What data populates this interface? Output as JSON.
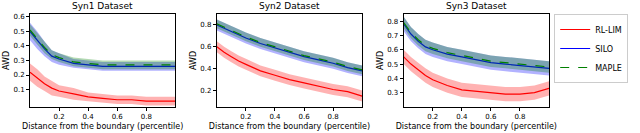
{
  "chart_data": [
    {
      "type": "line",
      "title": "Syn1 Dataset",
      "x_label": "Distance from the boundary (percentile)",
      "y_label": "AWD",
      "x": [
        0.0,
        0.05,
        0.1,
        0.15,
        0.2,
        0.3,
        0.4,
        0.5,
        0.6,
        0.7,
        0.8,
        0.9,
        1.0
      ],
      "xlim": [
        0,
        1
      ],
      "xticks": [
        0.2,
        0.4,
        0.6,
        0.8
      ],
      "ylim": [
        -0.02,
        0.62
      ],
      "yticks": [
        0.1,
        0.2,
        0.3,
        0.4,
        0.5,
        0.6
      ],
      "grid": false,
      "legend": "upper right",
      "series": [
        {
          "name": "RL-LIM",
          "color": "#ff0000",
          "line_style": "solid",
          "values": [
            0.22,
            0.18,
            0.14,
            0.11,
            0.09,
            0.07,
            0.05,
            0.04,
            0.03,
            0.03,
            0.02,
            0.02,
            0.02
          ],
          "error": [
            0.06,
            0.06,
            0.05,
            0.05,
            0.04,
            0.04,
            0.03,
            0.03,
            0.03,
            0.03,
            0.03,
            0.03,
            0.03
          ]
        },
        {
          "name": "SILO",
          "color": "#0000ff",
          "line_style": "solid",
          "values": [
            0.5,
            0.44,
            0.38,
            0.33,
            0.31,
            0.28,
            0.27,
            0.26,
            0.26,
            0.26,
            0.26,
            0.26,
            0.26
          ],
          "error": [
            0.06,
            0.06,
            0.05,
            0.04,
            0.04,
            0.03,
            0.03,
            0.03,
            0.03,
            0.03,
            0.03,
            0.03,
            0.03
          ]
        },
        {
          "name": "MAPLE",
          "color": "#008000",
          "line_style": "dashed",
          "values": [
            0.51,
            0.45,
            0.39,
            0.34,
            0.32,
            0.29,
            0.28,
            0.27,
            0.27,
            0.27,
            0.27,
            0.27,
            0.27
          ],
          "error": [
            0.04,
            0.04,
            0.04,
            0.03,
            0.03,
            0.03,
            0.03,
            0.03,
            0.03,
            0.03,
            0.03,
            0.03,
            0.03
          ]
        }
      ]
    },
    {
      "type": "line",
      "title": "Syn2 Dataset",
      "x_label": "Distance from the boundary (percentile)",
      "y_label": "AWD",
      "x": [
        0.0,
        0.05,
        0.1,
        0.15,
        0.2,
        0.3,
        0.4,
        0.5,
        0.6,
        0.7,
        0.8,
        0.9,
        1.0
      ],
      "xlim": [
        0,
        1
      ],
      "xticks": [
        0.2,
        0.4,
        0.6,
        0.8
      ],
      "ylim": [
        0.05,
        0.9
      ],
      "yticks": [
        0.2,
        0.4,
        0.6,
        0.8
      ],
      "grid": false,
      "legend": "upper right",
      "series": [
        {
          "name": "RL-LIM",
          "color": "#ff0000",
          "line_style": "solid",
          "values": [
            0.6,
            0.55,
            0.51,
            0.47,
            0.44,
            0.38,
            0.34,
            0.3,
            0.27,
            0.24,
            0.21,
            0.19,
            0.15
          ],
          "error": [
            0.05,
            0.05,
            0.05,
            0.05,
            0.05,
            0.05,
            0.05,
            0.05,
            0.05,
            0.05,
            0.05,
            0.05,
            0.05
          ]
        },
        {
          "name": "SILO",
          "color": "#0000ff",
          "line_style": "solid",
          "values": [
            0.8,
            0.77,
            0.74,
            0.71,
            0.68,
            0.63,
            0.59,
            0.55,
            0.51,
            0.48,
            0.45,
            0.41,
            0.38
          ],
          "error": [
            0.05,
            0.05,
            0.05,
            0.05,
            0.05,
            0.05,
            0.05,
            0.05,
            0.05,
            0.05,
            0.05,
            0.05,
            0.05
          ]
        },
        {
          "name": "MAPLE",
          "color": "#008000",
          "line_style": "dashed",
          "values": [
            0.81,
            0.78,
            0.75,
            0.72,
            0.69,
            0.64,
            0.6,
            0.56,
            0.52,
            0.49,
            0.46,
            0.42,
            0.39
          ],
          "error": [
            0.04,
            0.04,
            0.04,
            0.04,
            0.04,
            0.04,
            0.04,
            0.04,
            0.04,
            0.04,
            0.04,
            0.04,
            0.04
          ]
        }
      ]
    },
    {
      "type": "line",
      "title": "Syn3 Dataset",
      "x_label": "Distance from the boundary (percentile)",
      "y_label": "AWD",
      "x": [
        0.0,
        0.05,
        0.1,
        0.15,
        0.2,
        0.3,
        0.4,
        0.5,
        0.6,
        0.7,
        0.8,
        0.9,
        1.0
      ],
      "xlim": [
        0,
        1
      ],
      "xticks": [
        0.2,
        0.4,
        0.6,
        0.8
      ],
      "ylim": [
        0.2,
        0.85
      ],
      "yticks": [
        0.3,
        0.4,
        0.5,
        0.6,
        0.7,
        0.8
      ],
      "grid": false,
      "legend": "upper right",
      "series": [
        {
          "name": "RL-LIM",
          "color": "#ff0000",
          "line_style": "solid",
          "values": [
            0.55,
            0.5,
            0.46,
            0.42,
            0.39,
            0.35,
            0.32,
            0.31,
            0.3,
            0.29,
            0.29,
            0.3,
            0.33
          ],
          "error": [
            0.05,
            0.05,
            0.05,
            0.05,
            0.05,
            0.05,
            0.05,
            0.05,
            0.05,
            0.05,
            0.05,
            0.05,
            0.05
          ]
        },
        {
          "name": "SILO",
          "color": "#0000ff",
          "line_style": "solid",
          "values": [
            0.78,
            0.71,
            0.66,
            0.62,
            0.6,
            0.57,
            0.55,
            0.53,
            0.51,
            0.5,
            0.49,
            0.48,
            0.47
          ],
          "error": [
            0.05,
            0.05,
            0.05,
            0.05,
            0.05,
            0.05,
            0.05,
            0.05,
            0.05,
            0.05,
            0.05,
            0.05,
            0.05
          ]
        },
        {
          "name": "MAPLE",
          "color": "#008000",
          "line_style": "dashed",
          "values": [
            0.79,
            0.72,
            0.67,
            0.63,
            0.61,
            0.58,
            0.56,
            0.54,
            0.52,
            0.51,
            0.5,
            0.49,
            0.48
          ],
          "error": [
            0.04,
            0.04,
            0.04,
            0.04,
            0.04,
            0.04,
            0.04,
            0.04,
            0.04,
            0.04,
            0.04,
            0.04,
            0.04
          ]
        }
      ]
    }
  ]
}
